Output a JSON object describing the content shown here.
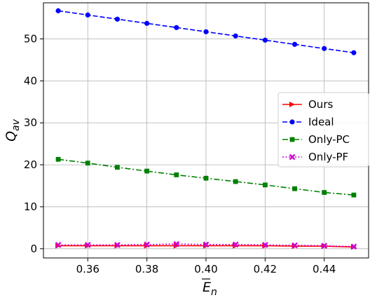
{
  "chart_data": {
    "type": "line",
    "xlabel": "E",
    "xlabel_sub": "n",
    "ylabel": "Q",
    "ylabel_sub": "av",
    "x": [
      0.35,
      0.36,
      0.37,
      0.38,
      0.39,
      0.4,
      0.41,
      0.42,
      0.43,
      0.44,
      0.45
    ],
    "xlim": [
      0.345,
      0.455
    ],
    "ylim": [
      -2.2,
      58.6
    ],
    "xticks": [
      0.36,
      0.38,
      0.4,
      0.42,
      0.44
    ],
    "xtick_labels": [
      "0.36",
      "0.38",
      "0.40",
      "0.42",
      "0.44"
    ],
    "yticks": [
      0,
      10,
      20,
      30,
      40,
      50
    ],
    "ytick_labels": [
      "0",
      "10",
      "20",
      "30",
      "40",
      "50"
    ],
    "grid": true,
    "legend_position": "center-right",
    "series": [
      {
        "name": "Ours",
        "color": "#ff0000",
        "linestyle": "solid",
        "marker": "triangle-right",
        "values": [
          0.7,
          0.7,
          0.7,
          0.7,
          0.7,
          0.7,
          0.7,
          0.7,
          0.6,
          0.6,
          0.4
        ]
      },
      {
        "name": "Ideal",
        "color": "#0000ff",
        "linestyle": "dashed",
        "marker": "circle",
        "values": [
          56.7,
          55.7,
          54.7,
          53.7,
          52.7,
          51.7,
          50.7,
          49.7,
          48.7,
          47.7,
          46.7
        ]
      },
      {
        "name": "Only-PC",
        "color": "#008000",
        "linestyle": "dashdot",
        "marker": "square",
        "values": [
          21.3,
          20.4,
          19.4,
          18.5,
          17.6,
          16.8,
          16.0,
          15.2,
          14.3,
          13.4,
          12.8
        ]
      },
      {
        "name": "Only-PF",
        "color": "#cc00cc",
        "linestyle": "dotted",
        "marker": "x",
        "values": [
          0.9,
          0.9,
          0.9,
          1.0,
          1.1,
          1.0,
          1.0,
          0.9,
          0.8,
          0.7,
          0.5
        ]
      }
    ]
  }
}
